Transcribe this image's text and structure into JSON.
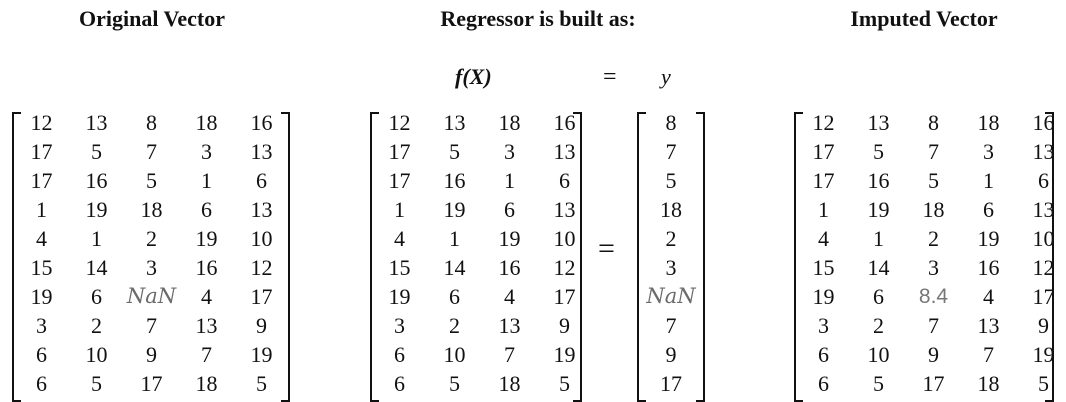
{
  "titles": {
    "original": "Original Vector",
    "regressor": "Regressor is built as:",
    "imputed": "Imputed Vector"
  },
  "formula": {
    "lhs": "f(X)",
    "equals": "=",
    "rhs": "y"
  },
  "equals_sign": "=",
  "original_matrix": [
    [
      "12",
      "13",
      "8",
      "18",
      "16"
    ],
    [
      "17",
      "5",
      "7",
      "3",
      "13"
    ],
    [
      "17",
      "16",
      "5",
      "1",
      "6"
    ],
    [
      "1",
      "19",
      "18",
      "6",
      "13"
    ],
    [
      "4",
      "1",
      "2",
      "19",
      "10"
    ],
    [
      "15",
      "14",
      "3",
      "16",
      "12"
    ],
    [
      "19",
      "6",
      "NaN",
      "4",
      "17"
    ],
    [
      "3",
      "2",
      "7",
      "13",
      "9"
    ],
    [
      "6",
      "10",
      "9",
      "7",
      "19"
    ],
    [
      "6",
      "5",
      "17",
      "18",
      "5"
    ]
  ],
  "x_matrix": [
    [
      "12",
      "13",
      "18",
      "16"
    ],
    [
      "17",
      "5",
      "3",
      "13"
    ],
    [
      "17",
      "16",
      "1",
      "6"
    ],
    [
      "1",
      "19",
      "6",
      "13"
    ],
    [
      "4",
      "1",
      "19",
      "10"
    ],
    [
      "15",
      "14",
      "16",
      "12"
    ],
    [
      "19",
      "6",
      "4",
      "17"
    ],
    [
      "3",
      "2",
      "13",
      "9"
    ],
    [
      "6",
      "10",
      "7",
      "19"
    ],
    [
      "6",
      "5",
      "18",
      "5"
    ]
  ],
  "y_vector": [
    [
      "8"
    ],
    [
      "7"
    ],
    [
      "5"
    ],
    [
      "18"
    ],
    [
      "2"
    ],
    [
      "3"
    ],
    [
      "NaN"
    ],
    [
      "7"
    ],
    [
      "9"
    ],
    [
      "17"
    ]
  ],
  "imputed_matrix": [
    [
      "12",
      "13",
      "8",
      "18",
      "16"
    ],
    [
      "17",
      "5",
      "7",
      "3",
      "13"
    ],
    [
      "17",
      "16",
      "5",
      "1",
      "6"
    ],
    [
      "1",
      "19",
      "18",
      "6",
      "13"
    ],
    [
      "4",
      "1",
      "2",
      "19",
      "10"
    ],
    [
      "15",
      "14",
      "3",
      "16",
      "12"
    ],
    [
      "19",
      "6",
      "8.4",
      "4",
      "17"
    ],
    [
      "3",
      "2",
      "7",
      "13",
      "9"
    ],
    [
      "6",
      "10",
      "9",
      "7",
      "19"
    ],
    [
      "6",
      "5",
      "17",
      "18",
      "5"
    ]
  ],
  "imputed_value": "8.4",
  "missing_token": "NaN"
}
